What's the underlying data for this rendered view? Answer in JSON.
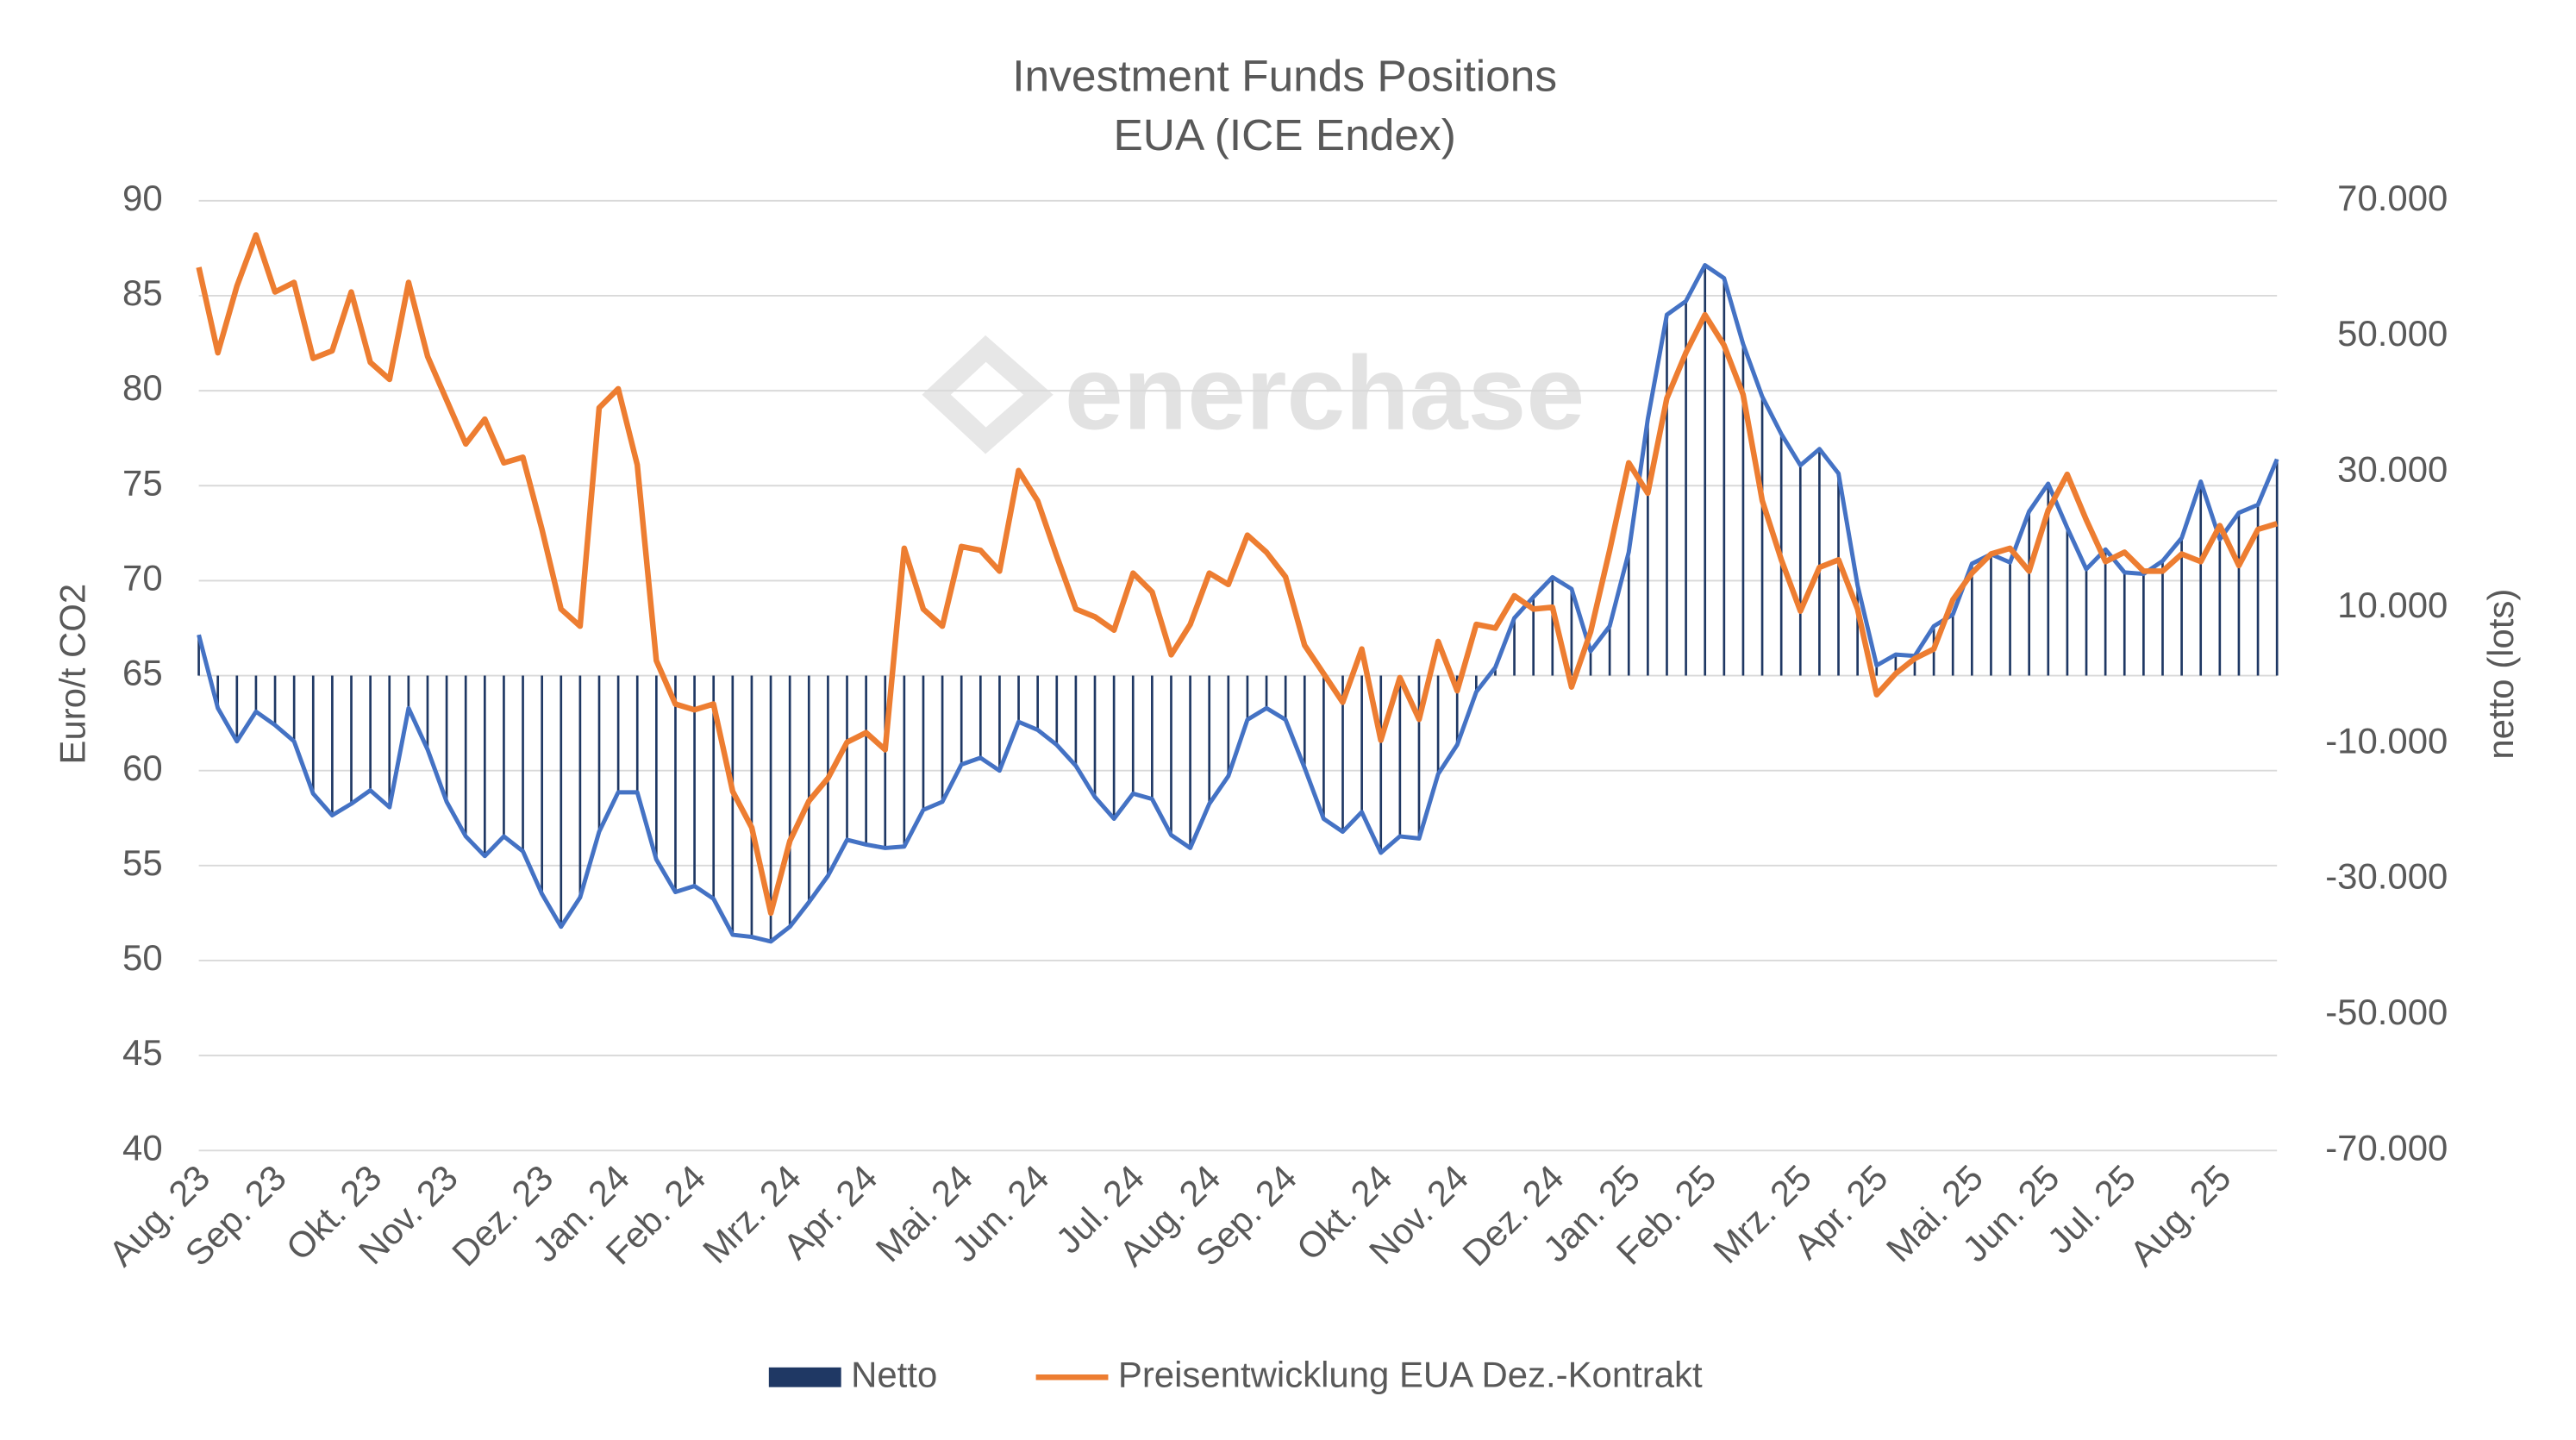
{
  "chart_data": {
    "type": "combo",
    "title": "Investment Funds Positions",
    "subtitle": "EUA (ICE Endex)",
    "watermark": "enerchase",
    "ylabel": "Euro/t CO2",
    "y2label": "netto (lots)",
    "ylim": [
      40,
      90
    ],
    "yticks": [
      40,
      45,
      50,
      55,
      60,
      65,
      70,
      75,
      80,
      85,
      90
    ],
    "y2lim": [
      -70000,
      70000
    ],
    "y2ticks": [
      {
        "value": -70000,
        "label": "-70.000"
      },
      {
        "value": -50000,
        "label": "-50.000"
      },
      {
        "value": -30000,
        "label": "-30.000"
      },
      {
        "value": -10000,
        "label": "-10.000"
      },
      {
        "value": 10000,
        "label": "10.000"
      },
      {
        "value": 30000,
        "label": "30.000"
      },
      {
        "value": 50000,
        "label": "50.000"
      },
      {
        "value": 70000,
        "label": "70.000"
      }
    ],
    "grid": true,
    "legend": "bottom",
    "categories": [
      "Aug. 23",
      null,
      null,
      null,
      "Sep. 23",
      null,
      null,
      null,
      null,
      "Okt. 23",
      null,
      null,
      null,
      "Nov. 23",
      null,
      null,
      null,
      null,
      "Dez. 23",
      null,
      null,
      null,
      "Jan. 24",
      null,
      null,
      null,
      "Feb. 24",
      null,
      null,
      null,
      null,
      "Mrz. 24",
      null,
      null,
      null,
      "Apr. 24",
      null,
      null,
      null,
      null,
      "Mai. 24",
      null,
      null,
      null,
      "Jun. 24",
      null,
      null,
      null,
      null,
      "Jul. 24",
      null,
      null,
      null,
      "Aug. 24",
      null,
      null,
      null,
      "Sep. 24",
      null,
      null,
      null,
      null,
      "Okt. 24",
      null,
      null,
      null,
      "Nov. 24",
      null,
      null,
      null,
      null,
      "Dez. 24",
      null,
      null,
      null,
      "Jan. 25",
      null,
      null,
      null,
      "Feb. 25",
      null,
      null,
      null,
      null,
      "Mrz. 25",
      null,
      null,
      null,
      "Apr. 25",
      null,
      null,
      null,
      null,
      "Mai. 25",
      null,
      null,
      null,
      "Jun. 25",
      null,
      null,
      null,
      "Jul. 25",
      null,
      null,
      null,
      null,
      "Aug. 25",
      null,
      null,
      null
    ],
    "series": [
      {
        "name": "Netto",
        "color": "#1f3864",
        "line_color": "#4472c4",
        "axis": "y2",
        "values": [
          6000,
          -4800,
          -9700,
          -5300,
          -7300,
          -9700,
          -17400,
          -20600,
          -18900,
          -16900,
          -19400,
          -4800,
          -10900,
          -18600,
          -23700,
          -26600,
          -23700,
          -25900,
          -32200,
          -37000,
          -32700,
          -23000,
          -17200,
          -17200,
          -27100,
          -31900,
          -31000,
          -32900,
          -38200,
          -38500,
          -39200,
          -37000,
          -33400,
          -29500,
          -24200,
          -24900,
          -25400,
          -25200,
          -19800,
          -18600,
          -13100,
          -12100,
          -14000,
          -6800,
          -8000,
          -10200,
          -13300,
          -17900,
          -21100,
          -17400,
          -18200,
          -23500,
          -25400,
          -18900,
          -14800,
          -6500,
          -4800,
          -6500,
          -13600,
          -21100,
          -23000,
          -20100,
          -26100,
          -23700,
          -24000,
          -14500,
          -10200,
          -2400,
          1200,
          8500,
          11600,
          14500,
          12800,
          3600,
          7300,
          18200,
          37800,
          53200,
          55200,
          60500,
          58600,
          48900,
          41100,
          35600,
          31000,
          33400,
          29800,
          13300,
          1500,
          3100,
          2900,
          7300,
          9000,
          16500,
          17900,
          16700,
          24200,
          28300,
          21800,
          15700,
          18600,
          15200,
          15000,
          16900,
          20300,
          28600,
          20100,
          24000,
          25200,
          31900
        ]
      },
      {
        "name": "Preisentwicklung EUA Dez.-Kontrakt",
        "color": "#ed7d31",
        "values": [
          86.5,
          82,
          85.5,
          88.2,
          85.2,
          85.7,
          81.7,
          82.1,
          85.2,
          81.5,
          80.6,
          85.7,
          81.8,
          79.5,
          77.2,
          78.5,
          76.2,
          76.5,
          72.7,
          68.5,
          67.6,
          79.1,
          80.1,
          76.1,
          65.8,
          63.5,
          63.2,
          63.5,
          58.9,
          57,
          52.5,
          56.3,
          58.4,
          59.6,
          61.5,
          62,
          61.1,
          71.7,
          68.5,
          67.6,
          71.8,
          71.6,
          70.5,
          75.8,
          74.2,
          71.3,
          68.5,
          68.1,
          67.4,
          70.4,
          69.4,
          66.1,
          67.7,
          70.4,
          69.8,
          72.4,
          71.5,
          70.2,
          66.6,
          65.1,
          63.6,
          66.4,
          61.6,
          64.9,
          62.7,
          66.8,
          64.2,
          67.7,
          67.5,
          69.2,
          68.5,
          68.6,
          64.4,
          67.3,
          71.6,
          76.2,
          74.6,
          79.6,
          82,
          84,
          82.4,
          79.8,
          74.2,
          71.1,
          68.4,
          70.7,
          71.1,
          68.5,
          64,
          65.1,
          65.9,
          66.4,
          69,
          70.4,
          71.4,
          71.7,
          70.5,
          73.7,
          75.6,
          73.2,
          71,
          71.5,
          70.5,
          70.5,
          71.4,
          71,
          72.9,
          70.8,
          72.7,
          73
        ]
      }
    ]
  }
}
